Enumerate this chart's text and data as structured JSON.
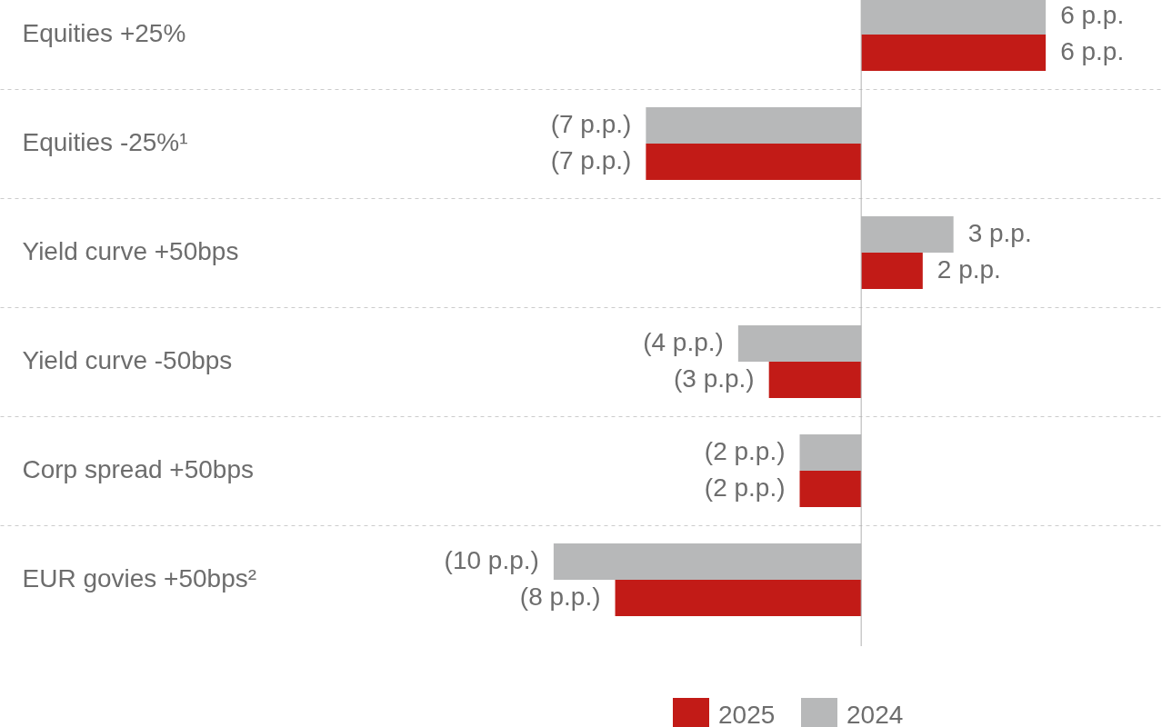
{
  "chart_data": {
    "type": "bar",
    "orientation": "horizontal",
    "categories": [
      "Equities +25%",
      "Equities -25%¹",
      "Yield curve +50bps",
      "Yield curve -50bps",
      "Corp spread +50bps",
      "EUR govies +50bps²"
    ],
    "series": [
      {
        "name": "2024",
        "color": "#b7b8b9",
        "values": [
          6,
          -7,
          3,
          -4,
          -2,
          -10
        ],
        "value_labels": [
          "6 p.p.",
          "(7 p.p.)",
          "3 p.p.",
          "(4 p.p.)",
          "(2 p.p.)",
          "(10 p.p.)"
        ]
      },
      {
        "name": "2025",
        "color": "#c21b17",
        "values": [
          6,
          -7,
          2,
          -3,
          -2,
          -8
        ],
        "value_labels": [
          "6 p.p.",
          "(7 p.p.)",
          "2 p.p.",
          "(3 p.p.)",
          "(2 p.p.)",
          "(8 p.p.)"
        ]
      }
    ],
    "grid": "y",
    "legend": "bottom right"
  }
}
